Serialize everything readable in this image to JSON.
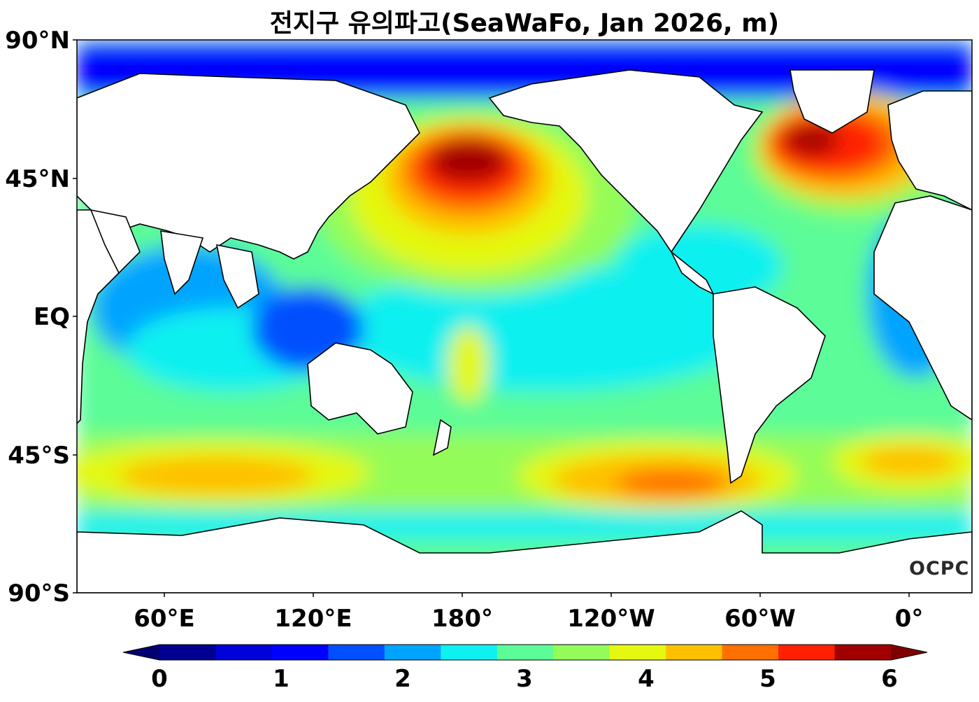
{
  "title": "전지구 유의파고(SeaWaFo, Jan 2026, m)",
  "y_axis": {
    "ticks": [
      "90°N",
      "45°N",
      "EQ",
      "45°S",
      "90°S"
    ]
  },
  "x_axis": {
    "ticks": [
      "60°E",
      "120°E",
      "180°",
      "120°W",
      "60°W",
      "0°"
    ]
  },
  "colorbar": {
    "ticks": [
      "0",
      "1",
      "2",
      "3",
      "4",
      "5",
      "6"
    ],
    "min": 0,
    "max": 6,
    "step": 0.5,
    "extend": "both",
    "colors": [
      "#000090",
      "#0000d8",
      "#0000ff",
      "#0050ff",
      "#00a4ff",
      "#0ff0f0",
      "#5cfc98",
      "#94fc58",
      "#e4f810",
      "#ffc000",
      "#ff7000",
      "#ff2000",
      "#a00000"
    ],
    "under_color": "#000070",
    "over_color": "#800000"
  },
  "logo": "OCPC",
  "map_colors": {
    "land": "#ffffff",
    "coast": "#000000"
  },
  "map_extent": {
    "longitude": "30°E to 30°E (0° to the right)",
    "latitude": "90°S to 90°N"
  }
}
